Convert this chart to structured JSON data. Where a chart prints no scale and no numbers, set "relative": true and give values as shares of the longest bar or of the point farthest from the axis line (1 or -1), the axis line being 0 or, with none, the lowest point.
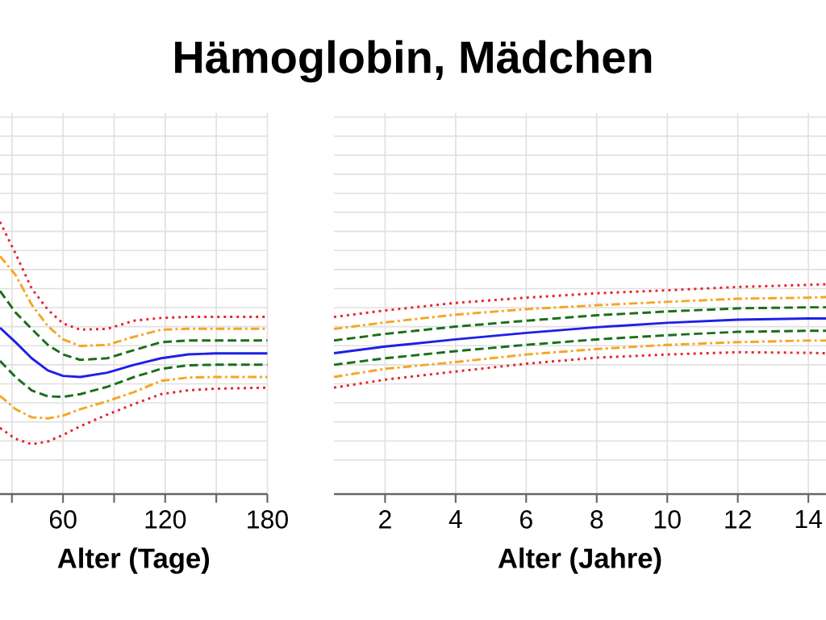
{
  "chart_data": [
    {
      "type": "line",
      "title": "Hämoglobin, Mädchen",
      "xlabel": "Alter (Tage)",
      "relative": true,
      "grid": true,
      "marker": "none",
      "xlim": [
        23,
        180
      ],
      "xticks": [
        {
          "value": 30,
          "label": null
        },
        60,
        {
          "value": 90,
          "label": null
        },
        120,
        {
          "value": 150,
          "label": null
        },
        180
      ],
      "x": [
        23,
        32.1,
        41.6,
        51.1,
        60,
        70.1,
        86,
        101.8,
        117.6,
        133.5,
        149.3,
        180
      ],
      "series": [
        {
          "color": "#e8222a",
          "line_style": "dotted",
          "values": [
            1.0,
            0.884,
            0.755,
            0.677,
            0.627,
            0.604,
            0.607,
            0.637,
            0.647,
            0.651,
            0.651,
            0.651
          ]
        },
        {
          "color": "#f5a623",
          "line_style": "dashdot",
          "values": [
            0.874,
            0.805,
            0.696,
            0.617,
            0.568,
            0.544,
            0.548,
            0.578,
            0.604,
            0.607,
            0.607,
            0.607
          ]
        },
        {
          "color": "#1a6e1a",
          "line_style": "dashed",
          "values": [
            0.746,
            0.667,
            0.607,
            0.548,
            0.513,
            0.493,
            0.499,
            0.529,
            0.558,
            0.564,
            0.564,
            0.564
          ]
        },
        {
          "color": "#1f1fe6",
          "line_style": "solid",
          "values": [
            0.611,
            0.558,
            0.499,
            0.454,
            0.434,
            0.43,
            0.446,
            0.475,
            0.499,
            0.513,
            0.517,
            0.517
          ]
        },
        {
          "color": "#1a6e1a",
          "line_style": "dashed",
          "values": [
            0.489,
            0.43,
            0.381,
            0.359,
            0.357,
            0.367,
            0.394,
            0.43,
            0.46,
            0.473,
            0.475,
            0.475
          ]
        },
        {
          "color": "#f5a623",
          "line_style": "dashdot",
          "values": [
            0.361,
            0.312,
            0.282,
            0.278,
            0.288,
            0.312,
            0.341,
            0.375,
            0.416,
            0.428,
            0.43,
            0.43
          ]
        },
        {
          "color": "#e8222a",
          "line_style": "dotted",
          "values": [
            0.243,
            0.203,
            0.183,
            0.193,
            0.217,
            0.249,
            0.292,
            0.331,
            0.367,
            0.381,
            0.387,
            0.391
          ]
        }
      ]
    },
    {
      "type": "line",
      "xlabel": "Alter (Jahre)",
      "relative": true,
      "grid": true,
      "marker": "none",
      "xlim": [
        0.55,
        14.5
      ],
      "xticks": [
        2,
        4,
        6,
        8,
        10,
        12,
        14
      ],
      "x": [
        0.55,
        2,
        4,
        6,
        8,
        10,
        12,
        14,
        14.5
      ],
      "series": [
        {
          "color": "#e8222a",
          "line_style": "dotted",
          "values": [
            0.844,
            0.875,
            0.911,
            0.936,
            0.957,
            0.971,
            0.987,
            0.997,
            1.0
          ]
        },
        {
          "color": "#f5a623",
          "line_style": "dashdot",
          "values": [
            0.787,
            0.818,
            0.855,
            0.881,
            0.9,
            0.916,
            0.931,
            0.936,
            0.939
          ]
        },
        {
          "color": "#1a6e1a",
          "line_style": "dashed",
          "values": [
            0.732,
            0.763,
            0.798,
            0.826,
            0.852,
            0.87,
            0.885,
            0.89,
            0.89
          ]
        },
        {
          "color": "#1f1fe6",
          "line_style": "solid",
          "values": [
            0.671,
            0.703,
            0.737,
            0.768,
            0.795,
            0.816,
            0.831,
            0.837,
            0.837
          ]
        },
        {
          "color": "#1a6e1a",
          "line_style": "dashed",
          "values": [
            0.616,
            0.647,
            0.681,
            0.711,
            0.737,
            0.757,
            0.773,
            0.778,
            0.778
          ]
        },
        {
          "color": "#f5a623",
          "line_style": "dashdot",
          "values": [
            0.558,
            0.597,
            0.629,
            0.665,
            0.691,
            0.711,
            0.724,
            0.732,
            0.732
          ]
        },
        {
          "color": "#e8222a",
          "line_style": "dotted",
          "values": [
            0.507,
            0.545,
            0.584,
            0.621,
            0.65,
            0.665,
            0.676,
            0.673,
            0.671
          ]
        }
      ]
    }
  ]
}
